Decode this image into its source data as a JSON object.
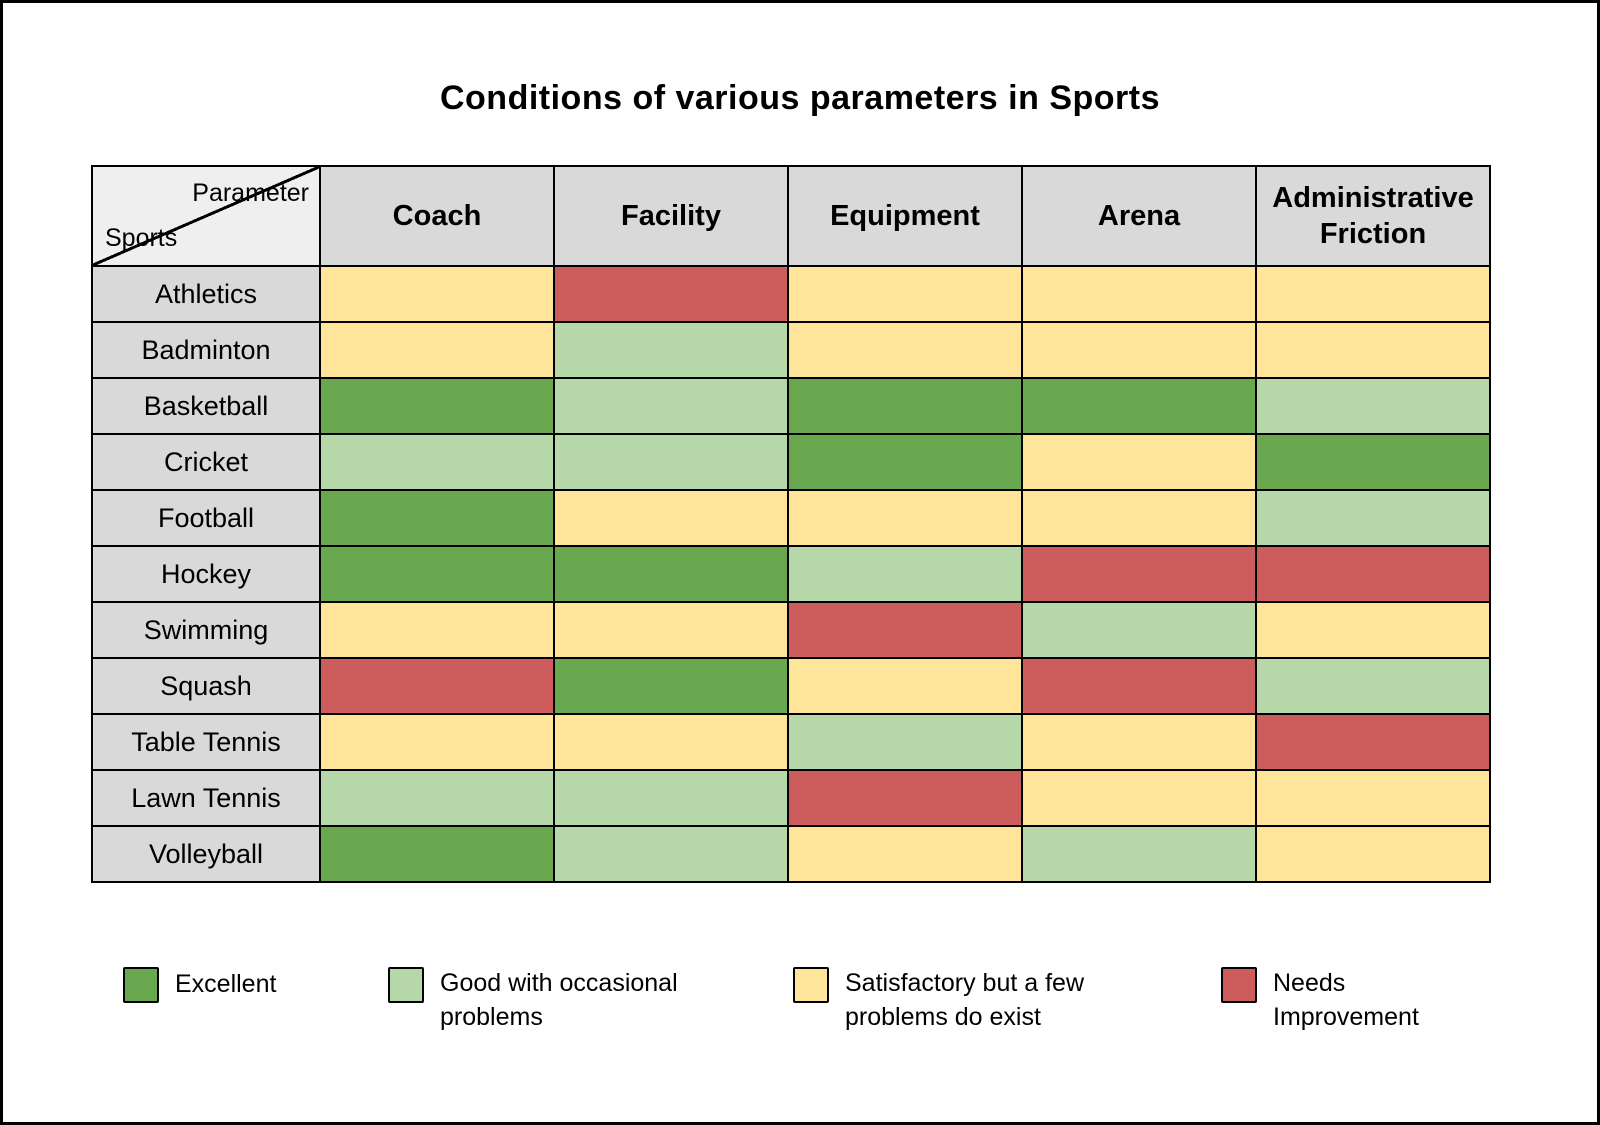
{
  "title": "Conditions of various parameters in Sports",
  "table": {
    "corner": {
      "top": "Parameter",
      "bottom": "Sports"
    },
    "columns": [
      "Coach",
      "Facility",
      "Equipment",
      "Arena",
      "Administrative Friction"
    ],
    "rows": [
      "Athletics",
      "Badminton",
      "Basketball",
      "Cricket",
      "Football",
      "Hockey",
      "Swimming",
      "Squash",
      "Table Tennis",
      "Lawn Tennis",
      "Volleyball"
    ],
    "cells": [
      [
        "satisfactory",
        "needs",
        "satisfactory",
        "satisfactory",
        "satisfactory"
      ],
      [
        "satisfactory",
        "good",
        "satisfactory",
        "satisfactory",
        "satisfactory"
      ],
      [
        "excellent",
        "good",
        "excellent",
        "excellent",
        "good"
      ],
      [
        "good",
        "good",
        "excellent",
        "satisfactory",
        "excellent"
      ],
      [
        "excellent",
        "satisfactory",
        "satisfactory",
        "satisfactory",
        "good"
      ],
      [
        "excellent",
        "excellent",
        "good",
        "needs",
        "needs"
      ],
      [
        "satisfactory",
        "satisfactory",
        "needs",
        "good",
        "satisfactory"
      ],
      [
        "needs",
        "excellent",
        "satisfactory",
        "needs",
        "good"
      ],
      [
        "satisfactory",
        "satisfactory",
        "good",
        "satisfactory",
        "needs"
      ],
      [
        "good",
        "good",
        "needs",
        "satisfactory",
        "satisfactory"
      ],
      [
        "excellent",
        "good",
        "satisfactory",
        "good",
        "satisfactory"
      ]
    ]
  },
  "colors": {
    "excellent": "#6aa84f",
    "good": "#b6d7a8",
    "satisfactory": "#ffe599",
    "needs": "#cd5c5c",
    "header_bg": "#d9d9d9",
    "corner_bg": "#efefef"
  },
  "legend": [
    {
      "key": "excellent",
      "label": "Excellent"
    },
    {
      "key": "good",
      "label": "Good with occasional problems"
    },
    {
      "key": "satisfactory",
      "label": "Satisfactory but a few problems do exist"
    },
    {
      "key": "needs",
      "label": "Needs Improvement"
    }
  ],
  "chart_data": {
    "type": "heatmap",
    "title": "Conditions of various parameters in Sports",
    "x": [
      "Coach",
      "Facility",
      "Equipment",
      "Arena",
      "Administrative Friction"
    ],
    "y": [
      "Athletics",
      "Badminton",
      "Basketball",
      "Cricket",
      "Football",
      "Hockey",
      "Swimming",
      "Squash",
      "Table Tennis",
      "Lawn Tennis",
      "Volleyball"
    ],
    "values": [
      [
        "satisfactory",
        "needs",
        "satisfactory",
        "satisfactory",
        "satisfactory"
      ],
      [
        "satisfactory",
        "good",
        "satisfactory",
        "satisfactory",
        "satisfactory"
      ],
      [
        "excellent",
        "good",
        "excellent",
        "excellent",
        "good"
      ],
      [
        "good",
        "good",
        "excellent",
        "satisfactory",
        "excellent"
      ],
      [
        "excellent",
        "satisfactory",
        "satisfactory",
        "satisfactory",
        "good"
      ],
      [
        "excellent",
        "excellent",
        "good",
        "needs",
        "needs"
      ],
      [
        "satisfactory",
        "satisfactory",
        "needs",
        "good",
        "satisfactory"
      ],
      [
        "needs",
        "excellent",
        "satisfactory",
        "needs",
        "good"
      ],
      [
        "satisfactory",
        "satisfactory",
        "good",
        "satisfactory",
        "needs"
      ],
      [
        "good",
        "good",
        "needs",
        "satisfactory",
        "satisfactory"
      ],
      [
        "excellent",
        "good",
        "satisfactory",
        "good",
        "satisfactory"
      ]
    ],
    "legend": [
      {
        "category": "excellent",
        "label": "Excellent",
        "color": "#6aa84f"
      },
      {
        "category": "good",
        "label": "Good with occasional problems",
        "color": "#b6d7a8"
      },
      {
        "category": "satisfactory",
        "label": "Satisfactory but a few problems do exist",
        "color": "#ffe599"
      },
      {
        "category": "needs",
        "label": "Needs Improvement",
        "color": "#cd5c5c"
      }
    ],
    "legend_position": "bottom",
    "grid": true
  }
}
